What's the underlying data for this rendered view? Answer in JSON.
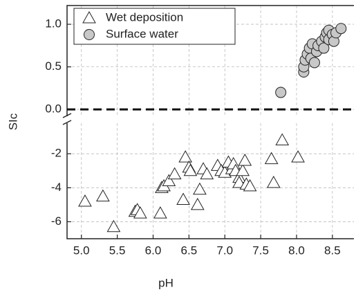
{
  "chart_data": {
    "type": "scatter",
    "x_label": "pH",
    "y_label": "SIc",
    "xlim": [
      4.8,
      8.8
    ],
    "xticks": [
      {
        "value": 5,
        "label": "5.0"
      },
      {
        "value": 5.5,
        "label": "5.5"
      },
      {
        "value": 6,
        "label": "6.0"
      },
      {
        "value": 6.5,
        "label": "6.5"
      },
      {
        "value": 7,
        "label": "7.0"
      },
      {
        "value": 7.5,
        "label": "7.5"
      },
      {
        "value": 8,
        "label": "8.0"
      },
      {
        "value": 8.5,
        "label": "8.5"
      }
    ],
    "y_segments": [
      {
        "ylim": [
          -7,
          -0.2
        ],
        "yticks": [
          -6,
          -4,
          -2
        ]
      },
      {
        "ylim": [
          -0.08,
          1.22
        ],
        "yticks": [
          {
            "value": 0,
            "label": "0.0"
          },
          {
            "value": 0.5,
            "label": "0.5"
          },
          {
            "value": 1,
            "label": "1.0"
          }
        ]
      }
    ],
    "hline": 0,
    "grid": true,
    "legend": "top-left",
    "series": [
      {
        "name": "Wet deposition",
        "marker": "triangle",
        "color": "#ffffff",
        "x": [
          5.05,
          5.3,
          5.45,
          5.75,
          5.78,
          5.82,
          6.1,
          6.12,
          6.15,
          6.22,
          6.3,
          6.42,
          6.45,
          6.5,
          6.52,
          6.62,
          6.65,
          6.7,
          6.75,
          6.9,
          6.95,
          7.0,
          7.05,
          7.1,
          7.12,
          7.15,
          7.2,
          7.2,
          7.25,
          7.28,
          7.3,
          7.35,
          7.65,
          7.68,
          7.8,
          8.02
        ],
        "values": [
          -4.8,
          -4.5,
          -6.3,
          -5.4,
          -5.3,
          -5.5,
          -5.5,
          -4.0,
          -3.9,
          -3.6,
          -3.2,
          -4.7,
          -2.2,
          -2.8,
          -3.0,
          -5.0,
          -4.1,
          -2.9,
          -3.2,
          -2.7,
          -3.0,
          -3.1,
          -2.5,
          -2.9,
          -2.6,
          -3.0,
          -3.4,
          -3.7,
          -3.0,
          -2.4,
          -3.8,
          -3.9,
          -2.3,
          -3.7,
          -1.2,
          -2.2
        ]
      },
      {
        "name": "Surface water",
        "marker": "circle",
        "color": "#c8c8c8",
        "x": [
          7.78,
          8.1,
          8.1,
          8.12,
          8.15,
          8.18,
          8.2,
          8.22,
          8.25,
          8.28,
          8.3,
          8.35,
          8.38,
          8.4,
          8.42,
          8.45,
          8.45,
          8.5,
          8.52,
          8.55,
          8.62
        ],
        "values": [
          0.2,
          0.44,
          0.5,
          0.58,
          0.65,
          0.72,
          0.6,
          0.77,
          0.55,
          0.68,
          0.75,
          0.8,
          0.72,
          0.85,
          0.9,
          0.93,
          0.82,
          0.88,
          0.8,
          0.9,
          0.95
        ]
      }
    ]
  }
}
